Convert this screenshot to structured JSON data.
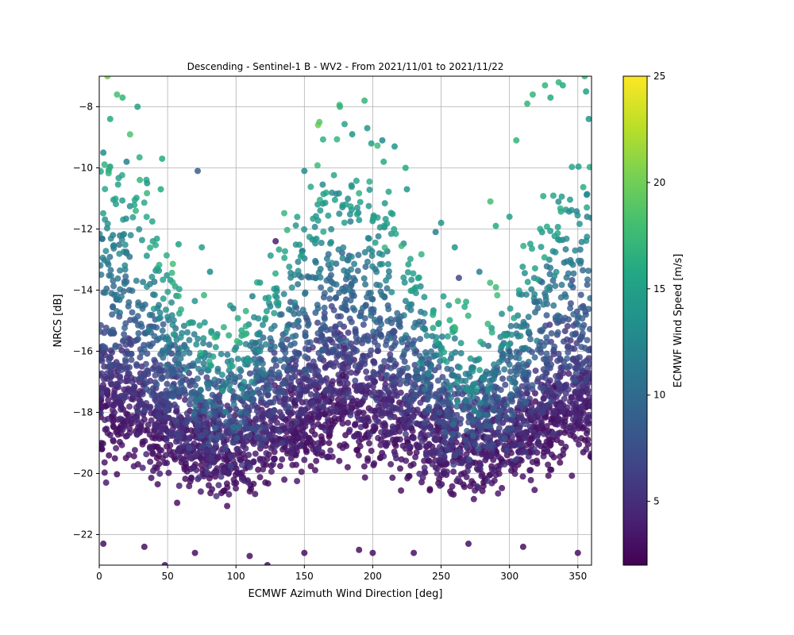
{
  "chart_data": {
    "type": "scatter",
    "title": "Descending - Sentinel-1 B - WV2 - From 2021/11/01 to 2021/11/22",
    "xlabel": "ECMWF Azimuth Wind Direction [deg]",
    "ylabel": "NRCS [dB]",
    "xlim": [
      0,
      360
    ],
    "ylim": [
      -23,
      -7
    ],
    "xticks": [
      0,
      50,
      100,
      150,
      200,
      250,
      300,
      350
    ],
    "yticks": [
      -22,
      -20,
      -18,
      -16,
      -14,
      -12,
      -10,
      -8
    ],
    "grid": true,
    "colorbar": {
      "label": "ECMWF Wind Speed [m/s]",
      "range": [
        2,
        25
      ],
      "ticks": [
        5,
        10,
        15,
        20,
        25
      ],
      "colormap": "viridis"
    },
    "trend": "NRCS rises with wind speed; brighter backscatter peaks near upwind (0 deg / 360 deg) and downwind (~180 deg) directions, with a minimum near crosswind (~90 deg and ~270 deg).",
    "series": [
      {
        "color_by": "wind_speed",
        "points": [
          {
            "x": 6,
            "y": -7.0,
            "c": 20
          },
          {
            "x": 13,
            "y": -7.6,
            "c": 18
          },
          {
            "x": 17,
            "y": -7.7,
            "c": 17
          },
          {
            "x": 8,
            "y": -8.4,
            "c": 16
          },
          {
            "x": 28,
            "y": -8.0,
            "c": 15
          },
          {
            "x": 3,
            "y": -9.5,
            "c": 13
          },
          {
            "x": 20,
            "y": -9.8,
            "c": 12
          },
          {
            "x": 46,
            "y": -9.7,
            "c": 16
          },
          {
            "x": 35,
            "y": -10.5,
            "c": 14
          },
          {
            "x": 45,
            "y": -10.7,
            "c": 16
          },
          {
            "x": 72,
            "y": -10.1,
            "c": 9
          },
          {
            "x": 58,
            "y": -12.5,
            "c": 15
          },
          {
            "x": 75,
            "y": -12.6,
            "c": 15
          },
          {
            "x": 81,
            "y": -13.4,
            "c": 13
          },
          {
            "x": 98,
            "y": -14.6,
            "c": 12
          },
          {
            "x": 112,
            "y": -14.2,
            "c": 12
          },
          {
            "x": 129,
            "y": -12.4,
            "c": 4
          },
          {
            "x": 150,
            "y": -10.1,
            "c": 13
          },
          {
            "x": 160,
            "y": -8.6,
            "c": 20
          },
          {
            "x": 161,
            "y": -8.5,
            "c": 19
          },
          {
            "x": 176,
            "y": -8.0,
            "c": 17
          },
          {
            "x": 185,
            "y": -8.9,
            "c": 14
          },
          {
            "x": 194,
            "y": -7.8,
            "c": 17
          },
          {
            "x": 196,
            "y": -8.7,
            "c": 14
          },
          {
            "x": 199,
            "y": -9.2,
            "c": 15
          },
          {
            "x": 207,
            "y": -9.1,
            "c": 13
          },
          {
            "x": 208,
            "y": -9.8,
            "c": 16
          },
          {
            "x": 216,
            "y": -9.3,
            "c": 14
          },
          {
            "x": 224,
            "y": -10.0,
            "c": 16
          },
          {
            "x": 225,
            "y": -10.7,
            "c": 14
          },
          {
            "x": 246,
            "y": -12.1,
            "c": 12
          },
          {
            "x": 250,
            "y": -11.8,
            "c": 14
          },
          {
            "x": 260,
            "y": -12.6,
            "c": 14
          },
          {
            "x": 263,
            "y": -13.6,
            "c": 7
          },
          {
            "x": 278,
            "y": -13.4,
            "c": 12
          },
          {
            "x": 286,
            "y": -11.1,
            "c": 18
          },
          {
            "x": 290,
            "y": -11.9,
            "c": 16
          },
          {
            "x": 300,
            "y": -11.6,
            "c": 15
          },
          {
            "x": 305,
            "y": -9.1,
            "c": 17
          },
          {
            "x": 313,
            "y": -7.9,
            "c": 17
          },
          {
            "x": 317,
            "y": -7.6,
            "c": 17
          },
          {
            "x": 326,
            "y": -7.3,
            "c": 17
          },
          {
            "x": 330,
            "y": -7.7,
            "c": 16
          },
          {
            "x": 336,
            "y": -7.2,
            "c": 17
          },
          {
            "x": 339,
            "y": -7.3,
            "c": 16
          },
          {
            "x": 355,
            "y": -7.0,
            "c": 17
          },
          {
            "x": 356,
            "y": -7.5,
            "c": 15
          },
          {
            "x": 358,
            "y": -8.4,
            "c": 14
          },
          {
            "x": 10,
            "y": -12.2,
            "c": 12
          },
          {
            "x": 22,
            "y": -14.0,
            "c": 10
          },
          {
            "x": 40,
            "y": -15.2,
            "c": 9
          },
          {
            "x": 60,
            "y": -16.6,
            "c": 8
          },
          {
            "x": 85,
            "y": -17.5,
            "c": 7
          },
          {
            "x": 100,
            "y": -17.9,
            "c": 6
          },
          {
            "x": 120,
            "y": -17.2,
            "c": 7
          },
          {
            "x": 140,
            "y": -15.8,
            "c": 9
          },
          {
            "x": 160,
            "y": -14.6,
            "c": 10
          },
          {
            "x": 180,
            "y": -14.0,
            "c": 11
          },
          {
            "x": 200,
            "y": -14.3,
            "c": 10
          },
          {
            "x": 220,
            "y": -15.2,
            "c": 9
          },
          {
            "x": 240,
            "y": -16.4,
            "c": 8
          },
          {
            "x": 260,
            "y": -17.4,
            "c": 7
          },
          {
            "x": 280,
            "y": -17.3,
            "c": 7
          },
          {
            "x": 300,
            "y": -16.0,
            "c": 8
          },
          {
            "x": 320,
            "y": -14.4,
            "c": 10
          },
          {
            "x": 340,
            "y": -13.1,
            "c": 11
          },
          {
            "x": 5,
            "y": -20.3,
            "c": 4
          },
          {
            "x": 3,
            "y": -22.3,
            "c": 3
          },
          {
            "x": 33,
            "y": -22.4,
            "c": 3
          },
          {
            "x": 70,
            "y": -22.6,
            "c": 3
          },
          {
            "x": 110,
            "y": -22.7,
            "c": 3
          },
          {
            "x": 150,
            "y": -22.6,
            "c": 3
          },
          {
            "x": 190,
            "y": -22.5,
            "c": 3
          },
          {
            "x": 230,
            "y": -22.6,
            "c": 3
          },
          {
            "x": 270,
            "y": -22.3,
            "c": 3
          },
          {
            "x": 310,
            "y": -22.4,
            "c": 3
          },
          {
            "x": 350,
            "y": -22.6,
            "c": 3
          },
          {
            "x": 48,
            "y": -23.0,
            "c": 3
          },
          {
            "x": 123,
            "y": -23.0,
            "c": 3
          },
          {
            "x": 178,
            "y": -16.8,
            "c": 3
          },
          {
            "x": 200,
            "y": -22.6,
            "c": 3
          }
        ]
      }
    ]
  }
}
